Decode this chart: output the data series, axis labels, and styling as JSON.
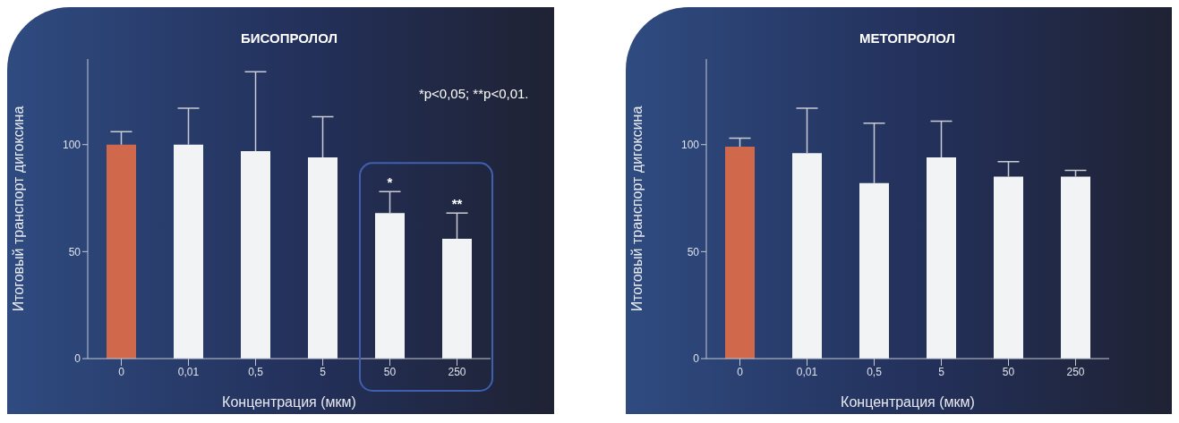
{
  "chart_data": [
    {
      "type": "bar",
      "title": "БИСОПРОЛОЛ",
      "xlabel": "Концентрация (мкм)",
      "ylabel": "Итоговый транспорт дигоксина",
      "categories": [
        "0",
        "0,01",
        "0,5",
        "5",
        "50",
        "250"
      ],
      "values": [
        100,
        100,
        97,
        94,
        68,
        56
      ],
      "colors": [
        "#d0694b",
        "#f2f3f5",
        "#f2f3f5",
        "#f2f3f5",
        "#f2f3f5",
        "#f2f3f5"
      ],
      "errors": [
        [
          100,
          106
        ],
        [
          100,
          117
        ],
        [
          97,
          134
        ],
        [
          94,
          113
        ],
        [
          68,
          78
        ],
        [
          56,
          68
        ]
      ],
      "ylim": [
        0,
        140
      ],
      "yticks": [
        0,
        50,
        100
      ],
      "grid": false,
      "legend": false,
      "annotations": [
        "*p<0,05; **p<0,01.",
        "*",
        "**"
      ]
    },
    {
      "type": "bar",
      "title": "МЕТОПРОЛОЛ",
      "xlabel": "Концентрация (мкм)",
      "ylabel": "Итоговый транспорт дигоксина",
      "categories": [
        "0",
        "0,01",
        "0,5",
        "5",
        "50",
        "250"
      ],
      "values": [
        99,
        96,
        82,
        94,
        85,
        85
      ],
      "colors": [
        "#d0694b",
        "#f2f3f5",
        "#f2f3f5",
        "#f2f3f5",
        "#f2f3f5",
        "#f2f3f5"
      ],
      "errors": [
        [
          99,
          103
        ],
        [
          96,
          117
        ],
        [
          82,
          110
        ],
        [
          94,
          111
        ],
        [
          85,
          92
        ],
        [
          85,
          88
        ]
      ],
      "ylim": [
        0,
        140
      ],
      "yticks": [
        0,
        50,
        100
      ],
      "grid": false,
      "legend": false
    }
  ]
}
